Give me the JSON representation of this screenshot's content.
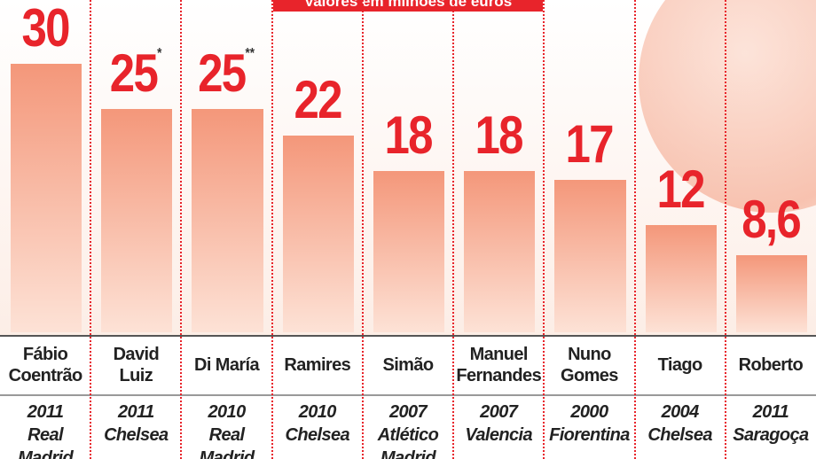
{
  "chart_data": {
    "type": "bar",
    "subtitle": "Valores em milhões de euros",
    "categories": [
      "Fábio\nCoentrão",
      "David\nLuiz",
      "Di María",
      "Ramires",
      "Simão",
      "Manuel\nFernandes",
      "Nuno\nGomes",
      "Tiago",
      "Roberto"
    ],
    "values": [
      30,
      25,
      25,
      22,
      18,
      18,
      17,
      12,
      8.6
    ],
    "value_labels": [
      "30",
      "25",
      "25",
      "22",
      "18",
      "18",
      "17",
      "12",
      "8,6"
    ],
    "annotations": [
      {
        "index": 1,
        "text": "*"
      },
      {
        "index": 2,
        "text": "**"
      }
    ],
    "years": [
      "2011",
      "2011",
      "2010",
      "2010",
      "2007",
      "2007",
      "2000",
      "2004",
      "2011"
    ],
    "clubs": [
      "Real Madrid",
      "Chelsea",
      "Real Madrid",
      "Chelsea",
      "Atlético Madrid",
      "Valencia",
      "Fiorentina",
      "Chelsea",
      "Saragoça"
    ],
    "color": "#f4977a",
    "label_color": "#e8242b"
  }
}
